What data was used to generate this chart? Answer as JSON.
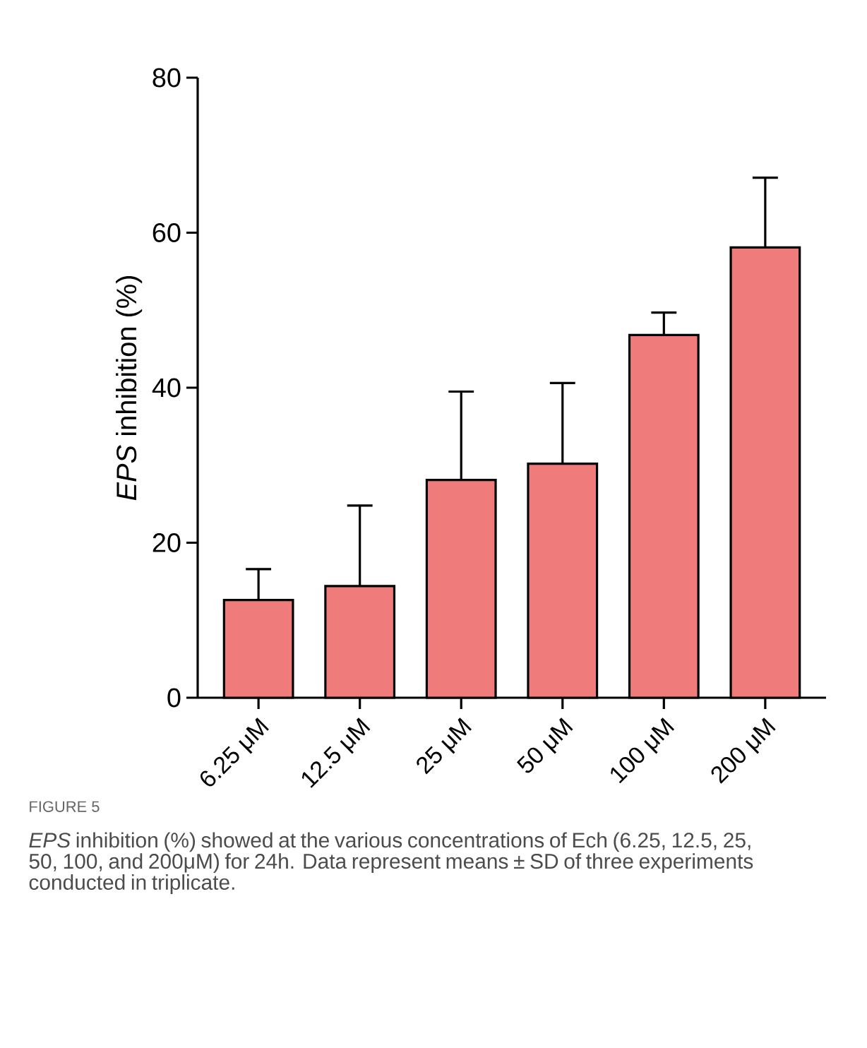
{
  "chart_data": {
    "type": "bar",
    "ylabel": "*EPS* inhibition (%)",
    "categories": [
      "6.25 μM",
      "12.5 μM",
      "25 μM",
      "50 μM",
      "100 μM",
      "200 μM"
    ],
    "values": [
      12.6,
      14.4,
      28.1,
      30.2,
      46.8,
      58.1
    ],
    "errors": [
      4.0,
      10.4,
      11.4,
      10.4,
      2.9,
      9.0
    ],
    "color": "#f07b7b",
    "ylim": [
      0,
      80
    ],
    "yticks": [
      0,
      20,
      40,
      60,
      80
    ],
    "annotations": [
      "FIGURE 5",
      "*EPS* inhibition (%) showed at the various concentrations of Ech (6.25, 12.5, 25, 50, 100, and 200μM) for 24h. Data represent means ± SD of three experiments conducted in triplicate."
    ]
  }
}
